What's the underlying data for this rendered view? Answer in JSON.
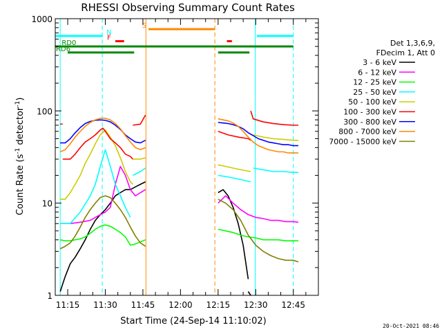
{
  "chart_data": {
    "type": "line",
    "title": "RHESSI Observing Summary Count Rates",
    "xlabel": "Start Time (24-Sep-14 11:10:02)",
    "ylabel": "Count Rate (s",
    "ylabel_sup1": "-1",
    "ylabel_mid": " detector",
    "ylabel_sup2": "-1",
    "ylabel_end": ")",
    "x_ticks": [
      "11:15",
      "11:30",
      "11:45",
      "12:00",
      "12:15",
      "12:30",
      "12:45"
    ],
    "x_tick_minutes": [
      15,
      30,
      45,
      60,
      75,
      90,
      105
    ],
    "xlim_minutes": [
      10.03,
      115
    ],
    "y_scale": "log",
    "ylim": [
      1,
      1000
    ],
    "y_ticks": [
      "1",
      "10",
      "100",
      "1000"
    ],
    "y_tick_values": [
      1,
      10,
      100,
      1000
    ],
    "legend": {
      "header1": "Det 1,3,6,9,",
      "header2": "FDecim 1, Att 0",
      "placement": "right"
    },
    "series": [
      {
        "name": "3 - 6 keV",
        "color": "#000000",
        "segments": [
          {
            "x": [
              12,
              14,
              16,
              18,
              20,
              22,
              24,
              26,
              28,
              30,
              32,
              34,
              36,
              38,
              40,
              42,
              44,
              46
            ],
            "y": [
              1.1,
              1.6,
              2.2,
              2.6,
              3.2,
              4.0,
              5.2,
              6.5,
              7.5,
              8.5,
              10,
              12,
              13,
              14,
              14,
              15,
              16,
              17
            ]
          },
          {
            "x": [
              75,
              77,
              79,
              81,
              83,
              85,
              87
            ],
            "y": [
              13,
              14,
              12,
              9,
              6,
              3.5,
              1.5
            ]
          },
          {
            "x": [
              87,
              88
            ],
            "y": [
              1.1,
              1.0
            ]
          }
        ]
      },
      {
        "name": "6 - 12 keV",
        "color": "#ff00ff",
        "segments": [
          {
            "x": [
              12,
              16,
              20,
              24,
              28,
              30,
              32,
              34,
              36,
              38,
              40,
              42,
              44,
              46
            ],
            "y": [
              6.0,
              6.0,
              6.2,
              6.5,
              7.5,
              8.0,
              9.0,
              16,
              25,
              20,
              14,
              12,
              13,
              14
            ]
          },
          {
            "x": [
              75,
              78,
              81,
              84,
              87,
              90,
              93,
              96,
              99,
              102,
              105,
              107
            ],
            "y": [
              10,
              12,
              10,
              8.5,
              7.5,
              7.0,
              6.8,
              6.5,
              6.5,
              6.3,
              6.3,
              6.2
            ]
          }
        ]
      },
      {
        "name": "12 - 25 keV",
        "color": "#00ff00",
        "segments": [
          {
            "x": [
              12,
              14,
              16,
              18,
              20,
              22,
              24,
              26,
              28,
              30,
              32,
              34,
              36,
              38,
              40,
              42,
              44,
              46
            ],
            "y": [
              4.0,
              3.9,
              3.9,
              4.0,
              4.1,
              4.3,
              4.7,
              5.2,
              5.6,
              5.8,
              5.6,
              5.2,
              4.8,
              4.3,
              3.5,
              3.6,
              3.8,
              4.0
            ]
          },
          {
            "x": [
              75,
              78,
              81,
              84,
              87,
              90,
              93,
              96,
              99,
              102,
              105,
              107
            ],
            "y": [
              5.2,
              5.0,
              4.8,
              4.5,
              4.3,
              4.2,
              4.0,
              4.0,
              4.0,
              3.9,
              3.9,
              3.9
            ]
          }
        ]
      },
      {
        "name": "25 - 50 keV",
        "color": "#00ffff",
        "segments": [
          {
            "x": [
              12,
              16,
              20,
              24,
              26,
              28,
              30,
              32,
              34,
              36,
              38,
              40
            ],
            "y": [
              6,
              6,
              8,
              12,
              16,
              25,
              38,
              25,
              16,
              12,
              9,
              7
            ]
          },
          {
            "x": [
              41,
              44,
              46
            ],
            "y": [
              20,
              22,
              24
            ]
          },
          {
            "x": [
              75,
              80,
              84,
              88
            ],
            "y": [
              20,
              19,
              18,
              17
            ]
          },
          {
            "x": [
              89,
              93,
              97,
              101,
              105,
              107
            ],
            "y": [
              24,
              23,
              22,
              22,
              21.5,
              21.5
            ]
          }
        ]
      },
      {
        "name": "50 - 100 keV",
        "color": "#cccc00",
        "segments": [
          {
            "x": [
              12,
              14,
              16,
              18,
              20,
              22,
              24,
              26,
              28,
              30,
              32,
              34,
              36,
              38,
              40,
              41
            ],
            "y": [
              11,
              11,
              13,
              16,
              20,
              27,
              34,
              44,
              55,
              62,
              52,
              42,
              31,
              22,
              17,
              16
            ]
          },
          {
            "x": [
              41,
              44,
              46
            ],
            "y": [
              30,
              30,
              31
            ]
          },
          {
            "x": [
              75,
              78,
              81,
              84,
              88
            ],
            "y": [
              26,
              25,
              24,
              23,
              22
            ]
          },
          {
            "x": [
              89,
              93,
              97,
              101,
              105,
              107
            ],
            "y": [
              55,
              52,
              50,
              49,
              48,
              48
            ]
          }
        ]
      },
      {
        "name": "100 - 300 keV",
        "color": "#ff0000",
        "segments": [
          {
            "x": [
              12,
              13
            ],
            "y": [
              72,
              72
            ]
          },
          {
            "x": [
              13,
              16,
              18,
              20,
              22,
              24,
              26,
              28,
              29,
              30,
              32,
              34,
              36,
              38,
              40,
              41
            ],
            "y": [
              30,
              30,
              34,
              40,
              46,
              50,
              55,
              62,
              65,
              60,
              50,
              45,
              40,
              34,
              32,
              30
            ]
          },
          {
            "x": [
              41,
              44,
              46
            ],
            "y": [
              70,
              72,
              90
            ]
          },
          {
            "x": [
              75,
              79,
              83,
              87,
              88
            ],
            "y": [
              60,
              55,
              52,
              50,
              48
            ]
          },
          {
            "x": [
              88,
              89,
              93,
              97,
              101,
              105,
              107
            ],
            "y": [
              100,
              82,
              76,
              73,
              71,
              70,
              70
            ]
          }
        ]
      },
      {
        "name": "300 - 800 keV",
        "color": "#0000ff",
        "segments": [
          {
            "x": [
              12,
              14,
              16,
              18,
              20,
              22,
              24,
              26,
              28,
              30,
              32,
              34,
              36,
              38,
              40,
              42,
              44,
              46
            ],
            "y": [
              45,
              45,
              50,
              58,
              66,
              73,
              77,
              79,
              80,
              79,
              76,
              70,
              63,
              55,
              50,
              46,
              45,
              48
            ]
          },
          {
            "x": [
              75,
              77,
              79,
              81,
              83,
              85,
              87,
              89,
              91,
              93,
              95,
              97,
              99,
              101,
              103,
              105,
              107
            ],
            "y": [
              75,
              74,
              73,
              71,
              68,
              64,
              58,
              54,
              50,
              48,
              46,
              45,
              44,
              43,
              43,
              42,
              42
            ]
          }
        ]
      },
      {
        "name": "800 - 7000 keV",
        "color": "#ff8800",
        "segments": [
          {
            "x": [
              12,
              14,
              16,
              18,
              20,
              22,
              24,
              26,
              28,
              30,
              32,
              34,
              36,
              38,
              40,
              42,
              44,
              46
            ],
            "y": [
              36,
              38,
              44,
              52,
              60,
              68,
              75,
              80,
              83,
              83,
              80,
              73,
              64,
              54,
              46,
              40,
              38,
              40
            ]
          },
          {
            "x": [
              75,
              77,
              79,
              81,
              83,
              85,
              87,
              89,
              91,
              93,
              95,
              97,
              99,
              101,
              103,
              105,
              107
            ],
            "y": [
              82,
              80,
              78,
              74,
              68,
              60,
              52,
              46,
              42,
              40,
              38,
              37,
              36,
              36,
              35,
              35,
              35
            ]
          }
        ]
      },
      {
        "name": "7000 - 15000 keV",
        "color": "#808000",
        "segments": [
          {
            "x": [
              12,
              14,
              16,
              18,
              20,
              22,
              24,
              26,
              28,
              30,
              32,
              34,
              36,
              38,
              40,
              42,
              44,
              46
            ],
            "y": [
              3.2,
              3.4,
              3.7,
              4.4,
              5.5,
              7.0,
              8.5,
              10,
              11.5,
              12,
              11.5,
              10,
              8.5,
              7.0,
              5.5,
              4.4,
              3.7,
              3.4
            ]
          },
          {
            "x": [
              75,
              78,
              81,
              84,
              87,
              90,
              93,
              96,
              99,
              102,
              105,
              107
            ],
            "y": [
              11,
              10,
              8.5,
              6.5,
              4.5,
              3.5,
              3.0,
              2.7,
              2.5,
              2.4,
              2.4,
              2.3
            ]
          }
        ]
      }
    ],
    "flag_bars": [
      {
        "name": "N",
        "color": "#00ffff",
        "y": 650,
        "label_x": 31.5,
        "segments": [
          [
            10.03,
            29
          ],
          [
            90.5,
            105
          ]
        ]
      },
      {
        "name": "F",
        "color": "#ff0000",
        "y": 570,
        "label_x": 31.5,
        "segments": [
          [
            34,
            37.5
          ],
          [
            78.5,
            80.5
          ]
        ]
      },
      {
        "name": "S",
        "color": "#ff8800",
        "y": 770,
        "label_x": 45.5,
        "segments": [
          [
            47.2,
            73.7
          ]
        ]
      },
      {
        "name": "RD0",
        "color": "#008800",
        "y": 500,
        "label_x": 15.5,
        "segments": [
          [
            10.03,
            105
          ]
        ]
      },
      {
        "name": "RD6",
        "color": "#008800",
        "y": 430,
        "label_x": 13.2,
        "segments": [
          [
            15,
            41.5
          ],
          [
            75,
            87.5
          ]
        ]
      }
    ],
    "vertical_markers": [
      {
        "x": 12.0,
        "color": "#00ffff",
        "style": "solid"
      },
      {
        "x": 28.8,
        "color": "#00ffff",
        "style": "dashed"
      },
      {
        "x": 46.2,
        "color": "#ff8800",
        "style": "solid"
      },
      {
        "x": 73.7,
        "color": "#ff8800",
        "style": "dashed"
      },
      {
        "x": 89.8,
        "color": "#00ffff",
        "style": "solid"
      },
      {
        "x": 105.0,
        "color": "#00ffff",
        "style": "dashed"
      }
    ],
    "timestamp": "20-Oct-2021 08:46"
  }
}
